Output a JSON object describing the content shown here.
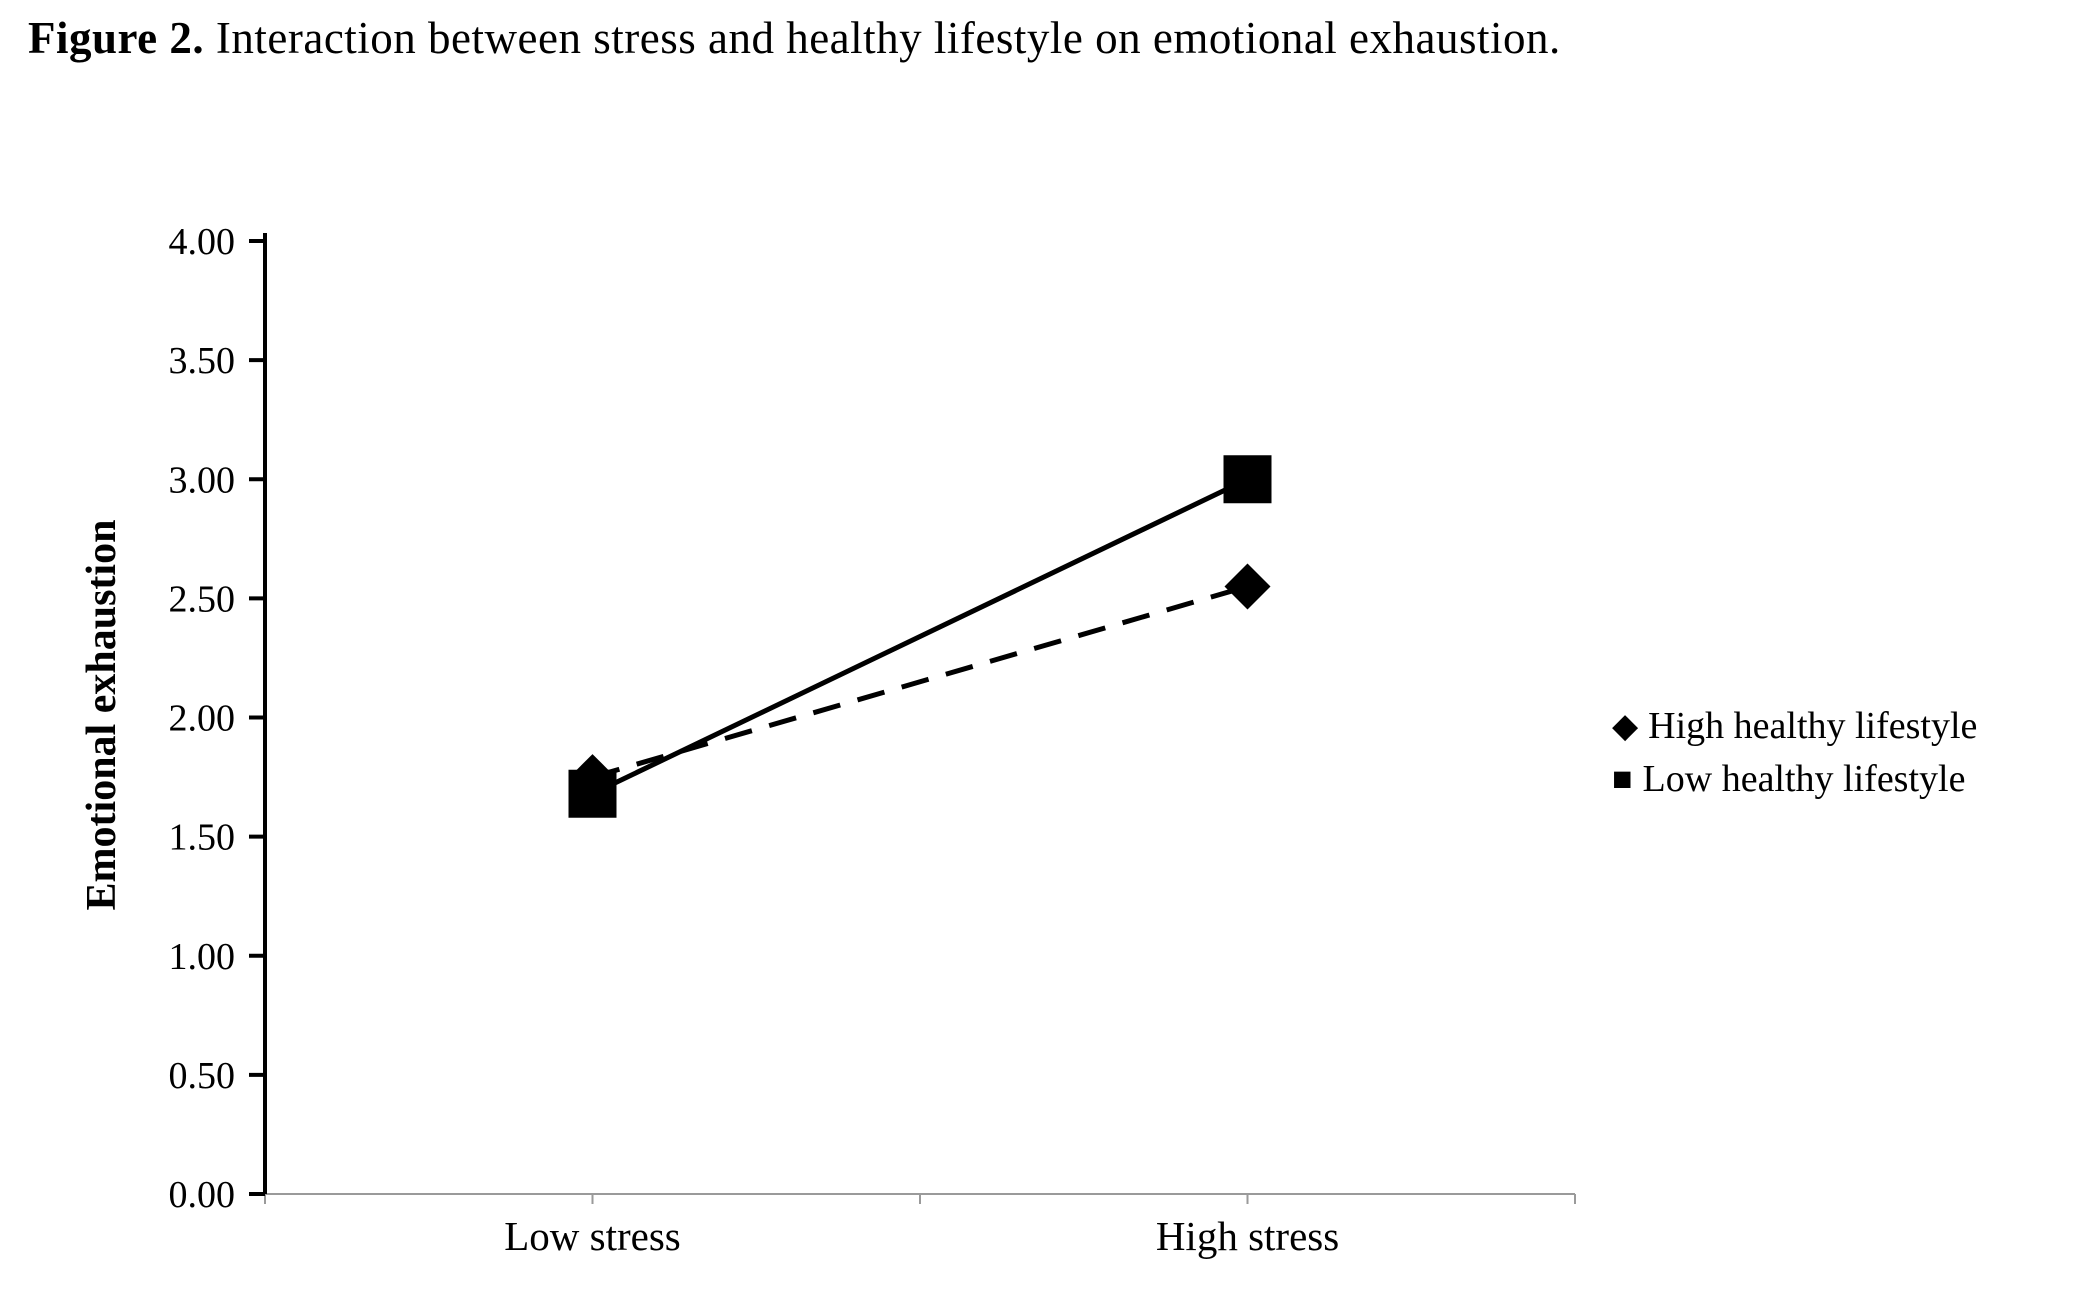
{
  "figure": {
    "label": "Figure 2.",
    "caption": " Interaction between stress and healthy lifestyle on emotional exhaustion."
  },
  "chart_data": {
    "type": "line",
    "title": "Interaction between stress and healthy lifestyle on emotional exhaustion",
    "categories": [
      "Low stress",
      "High stress"
    ],
    "series": [
      {
        "name": "High healthy lifestyle",
        "marker": "diamond",
        "line": "dashed",
        "values": [
          1.75,
          2.55
        ]
      },
      {
        "name": "Low healthy lifestyle",
        "marker": "square",
        "line": "solid",
        "values": [
          1.68,
          3.0
        ]
      }
    ],
    "xlabel": "",
    "ylabel": "Emotional exhaustion",
    "ylim": [
      0,
      4
    ],
    "ytick_step": 0.5,
    "ytick_labels": [
      "0.00",
      "0.50",
      "1.00",
      "1.50",
      "2.00",
      "2.50",
      "3.00",
      "3.50",
      "4.00"
    ],
    "grid": false,
    "legend_position": "right",
    "line_color": "#000000",
    "marker_color": "#000000",
    "background_color": "#ffffff"
  }
}
